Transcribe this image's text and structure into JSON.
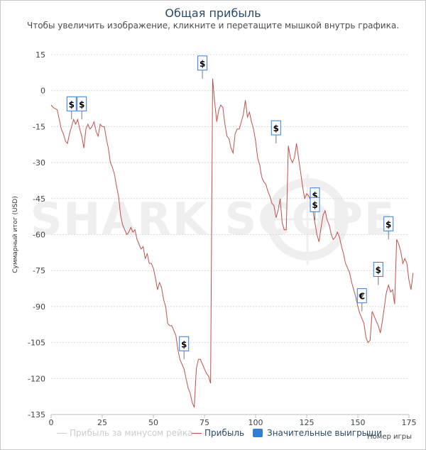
{
  "title": "Общая прибыль",
  "subtitle": "Чтобы увеличить изображение, кликните и перетащите мышкой внутрь графика.",
  "watermark": "SHARK SCOPE",
  "colors": {
    "profit": "#c0504d",
    "rake_line": "#cccccc",
    "wins": "#2f7ed8",
    "flag_border": "#2f7ed8",
    "title": "#274b6d",
    "grid": "#d8d8d8",
    "watermark": "#efefef"
  },
  "legend": {
    "rake": "Прибыль за минусом рейка",
    "profit": "Прибыль",
    "wins": "Значительные выигрыши"
  },
  "chart_data": {
    "type": "line",
    "title": "Общая прибыль",
    "xlabel": "Номер игры",
    "ylabel": "Суммарный итог (USD)",
    "xlim": [
      0,
      175
    ],
    "ylim": [
      -135,
      15
    ],
    "x_ticks": [
      0,
      25,
      50,
      75,
      100,
      125,
      150,
      175
    ],
    "y_ticks": [
      15,
      0,
      -15,
      -30,
      -45,
      -60,
      -75,
      -90,
      -105,
      -120,
      -135
    ],
    "series": [
      {
        "name": "Прибыль",
        "values": [
          -6,
          -7,
          -7.5,
          -8,
          -12,
          -16,
          -18,
          -21,
          -22,
          -18,
          -15,
          -12,
          -14,
          -12,
          -16,
          -19,
          -24,
          -16,
          -14,
          -16,
          -15,
          -13,
          -17,
          -19,
          -14,
          -15,
          -15,
          -20,
          -24,
          -30,
          -32,
          -35,
          -40,
          -44,
          -52,
          -56,
          -58,
          -60,
          -59,
          -57,
          -59,
          -58,
          -62,
          -64,
          -66,
          -65,
          -70,
          -68,
          -72,
          -72,
          -74,
          -78,
          -83,
          -80,
          -82,
          -87,
          -90,
          -97,
          -98,
          -98,
          -100,
          -102,
          -108,
          -112,
          -114,
          -116,
          -120,
          -124,
          -126,
          -130,
          -132,
          -116,
          -112,
          -112,
          -114,
          -116,
          -118,
          -119,
          -122,
          5,
          -5,
          -13,
          -8,
          -6,
          -7,
          -14,
          -19,
          -20,
          -24,
          -26,
          -18,
          -16,
          -16,
          -13,
          -10,
          -4,
          -11,
          -9,
          -13,
          -16,
          -21,
          -28,
          -31,
          -36,
          -38,
          -39,
          -42,
          -44,
          -47,
          -48,
          -53,
          -50,
          -45,
          -55,
          -58,
          -58,
          -23,
          -28,
          -30,
          -28,
          -22,
          -28,
          -34,
          -40,
          -45,
          -43,
          -44,
          -46,
          -50,
          -55,
          -60,
          -63,
          -57,
          -52,
          -50,
          -54,
          -56,
          -60,
          -62,
          -61,
          -59,
          -61,
          -65,
          -68,
          -72,
          -74,
          -76,
          -80,
          -83,
          -86,
          -90,
          -93,
          -95,
          -97,
          -103,
          -105,
          -104,
          -92,
          -94,
          -96,
          -98,
          -101,
          -96,
          -90,
          -84,
          -81,
          -84,
          -83,
          -89,
          -62,
          -64,
          -67,
          -72,
          -70,
          -72,
          -79,
          -83,
          -76
        ]
      },
      {
        "name": "Прибыль за минусом рейка",
        "values": []
      }
    ],
    "significant_wins": [
      {
        "x": 10,
        "y": -12,
        "label": "$"
      },
      {
        "x": 15,
        "y": -12,
        "label": "$"
      },
      {
        "x": 65,
        "y": -112,
        "label": "$"
      },
      {
        "x": 74,
        "y": 5,
        "label": "$"
      },
      {
        "x": 110,
        "y": -22,
        "label": "$"
      },
      {
        "x": 129,
        "y": -50,
        "label": "$"
      },
      {
        "x": 129,
        "y": -54,
        "label": "$"
      },
      {
        "x": 152,
        "y": -92,
        "label": "€"
      },
      {
        "x": 160,
        "y": -81,
        "label": "$"
      },
      {
        "x": 165,
        "y": -62,
        "label": "$"
      }
    ]
  }
}
